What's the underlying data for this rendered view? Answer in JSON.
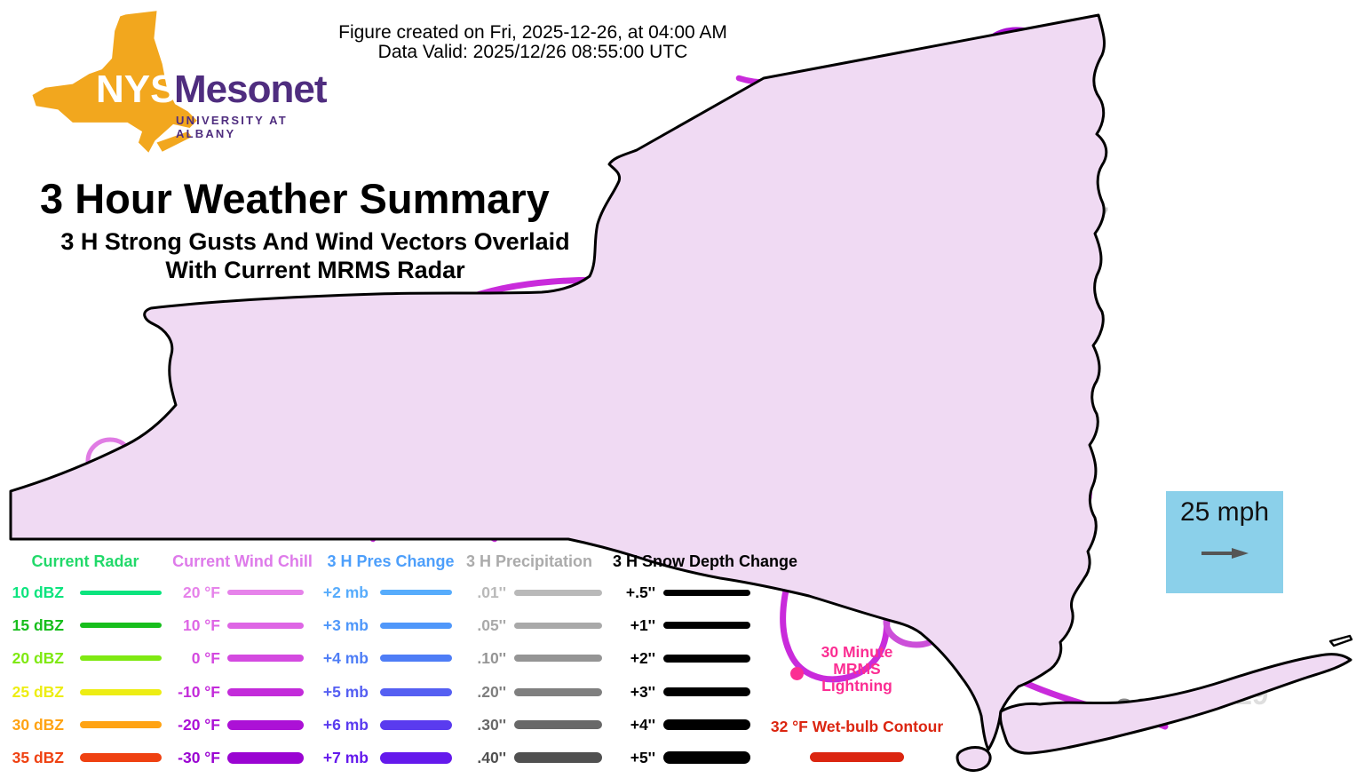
{
  "meta_header": {
    "created_line1": "Figure created on Fri, 2025-12-26, at 04:00 AM",
    "created_line2": "Data Valid: 2025/12/26 08:55:00 UTC"
  },
  "logo": {
    "state_abbr": "NYS",
    "name": "Mesonet",
    "university": "UNIVERSITY AT ALBANY",
    "state_color": "#F2A71E",
    "brand_purple": "#4F2D7F"
  },
  "title_block": {
    "title": "3 Hour Weather Summary",
    "subtitle_line1": "3 H Strong Gusts And Wind Vectors Overlaid",
    "subtitle_line2": "With Current MRMS Radar"
  },
  "map": {
    "region": "New York State",
    "wind_reference_label": "25 mph",
    "gust_labels": [
      {
        "text": "27",
        "color": "#C6C6C6"
      },
      {
        "text": "28",
        "color": "#8A8A8A"
      },
      {
        "text": "29",
        "color": "#DEDEDE"
      }
    ]
  },
  "legend": {
    "columns": [
      {
        "id": "radar",
        "header": "Current Radar",
        "header_color": "#22D96A",
        "rows": [
          {
            "label": "10 dBZ",
            "color": "#0BE47E",
            "thickness": 5
          },
          {
            "label": "15 dBZ",
            "color": "#17BE1C",
            "thickness": 6
          },
          {
            "label": "20 dBZ",
            "color": "#7FE912",
            "thickness": 6
          },
          {
            "label": "25 dBZ",
            "color": "#EDED13",
            "thickness": 7
          },
          {
            "label": "30 dBZ",
            "color": "#FFA313",
            "thickness": 8
          },
          {
            "label": "35 dBZ",
            "color": "#EF4111",
            "thickness": 10
          }
        ]
      },
      {
        "id": "windchill",
        "header": "Current Wind Chill",
        "header_color": "#DE7BEA",
        "rows": [
          {
            "label": "20 °F",
            "color": "#E683EA",
            "thickness": 6
          },
          {
            "label": "10 °F",
            "color": "#DE66E5",
            "thickness": 7
          },
          {
            "label": "0 °F",
            "color": "#D44AE0",
            "thickness": 8
          },
          {
            "label": "-10 °F",
            "color": "#C32BDA",
            "thickness": 9
          },
          {
            "label": "-20 °F",
            "color": "#AC11D6",
            "thickness": 11
          },
          {
            "label": "-30 °F",
            "color": "#9A04D2",
            "thickness": 13
          }
        ]
      },
      {
        "id": "pres",
        "header": "3 H Pres Change",
        "header_color": "#4D9FFB",
        "rows": [
          {
            "label": "+2 mb",
            "color": "#57ACFC",
            "thickness": 6
          },
          {
            "label": "+3 mb",
            "color": "#4F97FA",
            "thickness": 7
          },
          {
            "label": "+4 mb",
            "color": "#4E7DF6",
            "thickness": 8
          },
          {
            "label": "+5 mb",
            "color": "#555FF2",
            "thickness": 9
          },
          {
            "label": "+6 mb",
            "color": "#5A3BEF",
            "thickness": 11
          },
          {
            "label": "+7 mb",
            "color": "#6419EC",
            "thickness": 13
          }
        ]
      },
      {
        "id": "precip",
        "header": "3 H Precipitation",
        "header_color": "#ABABAB",
        "rows": [
          {
            "label": ".01''",
            "color": "#B9B9B9",
            "thickness": 7
          },
          {
            "label": ".05''",
            "color": "#A9A9A9",
            "thickness": 7
          },
          {
            "label": ".10''",
            "color": "#959595",
            "thickness": 8
          },
          {
            "label": ".20''",
            "color": "#7F7F7F",
            "thickness": 9
          },
          {
            "label": ".30''",
            "color": "#686868",
            "thickness": 10
          },
          {
            "label": ".40''",
            "color": "#505050",
            "thickness": 12
          }
        ]
      },
      {
        "id": "snow",
        "header": "3 H Snow Depth Change",
        "header_color": "#000000",
        "rows": [
          {
            "label": "+.5''",
            "color": "#000000",
            "thickness": 7
          },
          {
            "label": "+1''",
            "color": "#000000",
            "thickness": 8
          },
          {
            "label": "+2''",
            "color": "#000000",
            "thickness": 9
          },
          {
            "label": "+3''",
            "color": "#000000",
            "thickness": 10
          },
          {
            "label": "+4''",
            "color": "#000000",
            "thickness": 12
          },
          {
            "label": "+5''",
            "color": "#000000",
            "thickness": 14
          }
        ]
      }
    ],
    "lightning": {
      "line1": "30 Minute",
      "line2": "MRMS",
      "line3": "Lightning",
      "color": "#FB2E93"
    },
    "wetbulb": {
      "label": "32 °F Wet-bulb Contour",
      "color": "#DB2510"
    }
  },
  "colors": {
    "map_fill": "#F0DAF3",
    "map_fill_light": "#F5E7F9",
    "map_fill_dark": "#ECD1F1",
    "contour_magenta": "#C92BDB",
    "contour_dark_purple": "#A90ED3",
    "contour_light_magenta": "#E07BE4",
    "contour_blue": "#55A8F0",
    "blue_fill": "#C8CEF3",
    "radar_green": "#2BD045",
    "radar_green_dark": "#089B24",
    "wind_arrow": "#4F4F4F",
    "wind_box_bg": "#8BD0EA"
  }
}
